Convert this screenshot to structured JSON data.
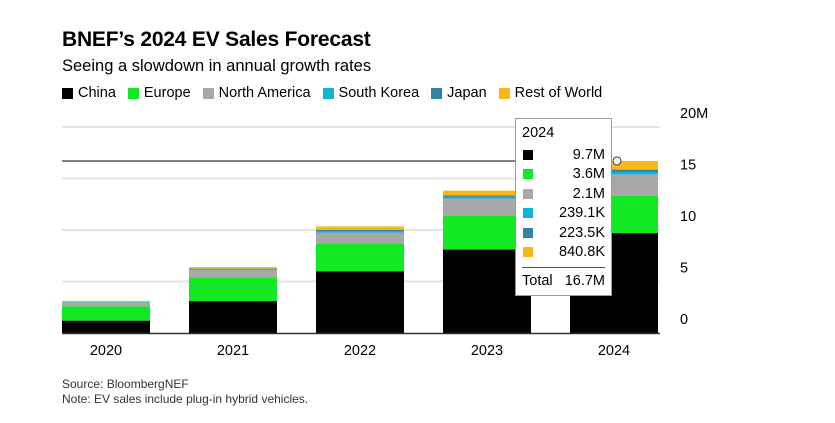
{
  "title": "BNEF’s 2024 EV Sales Forecast",
  "subtitle": "Seeing a slowdown in annual growth rates",
  "footer": {
    "source": "Source: BloombergNEF",
    "note": "Note: EV sales include plug-in hybrid vehicles."
  },
  "chart_data": {
    "type": "bar",
    "stacked": true,
    "categories": [
      "2020",
      "2021",
      "2022",
      "2023",
      "2024"
    ],
    "series": [
      {
        "name": "China",
        "color": "#000000",
        "values": [
          1.2,
          3.1,
          6.0,
          8.1,
          9.7
        ]
      },
      {
        "name": "Europe",
        "color": "#13e824",
        "values": [
          1.4,
          2.3,
          2.7,
          3.3,
          3.6
        ]
      },
      {
        "name": "North America",
        "color": "#a8a8a8",
        "values": [
          0.35,
          0.7,
          1.05,
          1.65,
          2.1
        ]
      },
      {
        "name": "South Korea",
        "color": "#0db4d6",
        "values": [
          0.05,
          0.1,
          0.15,
          0.17,
          0.2391
        ]
      },
      {
        "name": "Japan",
        "color": "#2f82a8",
        "values": [
          0.03,
          0.05,
          0.1,
          0.15,
          0.2235
        ]
      },
      {
        "name": "Rest of World",
        "color": "#fbb714",
        "values": [
          0.1,
          0.15,
          0.35,
          0.45,
          0.8408
        ]
      }
    ],
    "ylim": [
      0,
      20
    ],
    "yticks": [
      "0",
      "5",
      "10",
      "15",
      "20M"
    ],
    "ytick_values": [
      0,
      5,
      10,
      15,
      20
    ],
    "reference_line": 16.7,
    "legend_position": "top",
    "grid": true,
    "tooltip": {
      "year": "2024",
      "rows": [
        {
          "color": "#000000",
          "value": "9.7M"
        },
        {
          "color": "#13e824",
          "value": "3.6M"
        },
        {
          "color": "#a8a8a8",
          "value": "2.1M"
        },
        {
          "color": "#0db4d6",
          "value": "239.1K"
        },
        {
          "color": "#2f82a8",
          "value": "223.5K"
        },
        {
          "color": "#fbb714",
          "value": "840.8K"
        }
      ],
      "total_label": "Total",
      "total_value": "16.7M"
    }
  }
}
